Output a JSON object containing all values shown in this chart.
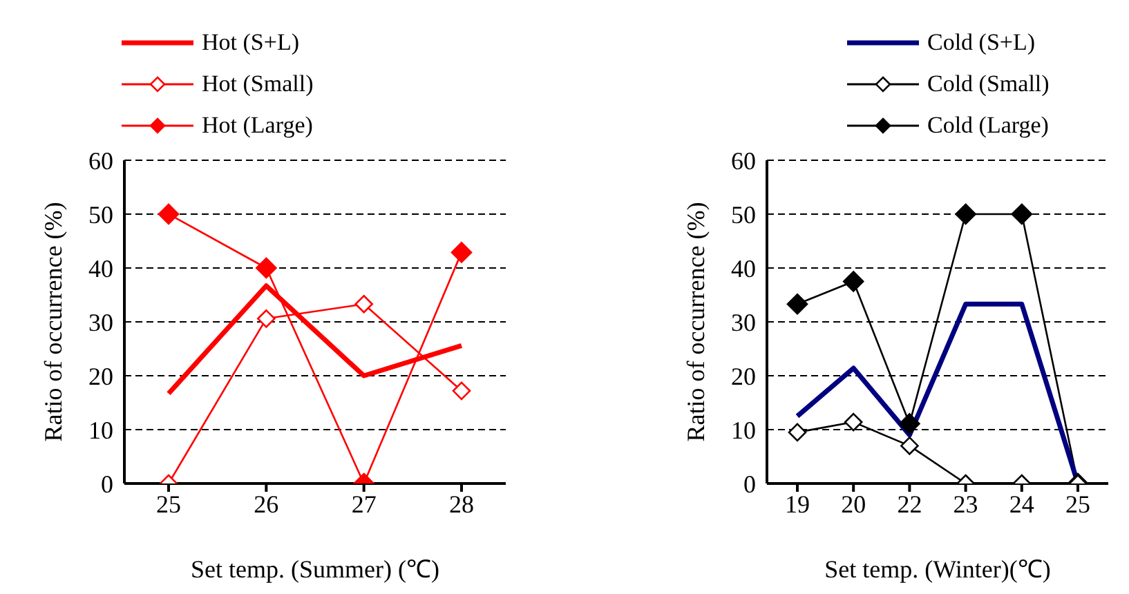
{
  "chart_data": [
    {
      "type": "line",
      "xlabel": "Set temp. (Summer) (℃)",
      "ylabel": "Ratio of occurrence (%)",
      "categories": [
        "25",
        "26",
        "27",
        "28"
      ],
      "ylim": [
        0,
        60
      ],
      "yticks": [
        0,
        10,
        20,
        30,
        40,
        50,
        60
      ],
      "grid": "y",
      "legend": "top",
      "series": [
        {
          "name": "Hot (S+L)",
          "color": "#ff0000",
          "marker": "none",
          "values": [
            16.7,
            36.7,
            20,
            25.6
          ]
        },
        {
          "name": "Hot (Small)",
          "color": "#ff0000",
          "marker": "diamond",
          "values": [
            0,
            30.6,
            33.3,
            17.2
          ]
        },
        {
          "name": "Hot (Large)",
          "color": "#ff0000",
          "marker": "diamond",
          "values": [
            50,
            40,
            0,
            42.9
          ]
        }
      ]
    },
    {
      "type": "line",
      "xlabel": "Set temp. (Winter)(℃)",
      "ylabel": "Ratio of occurrence (%)",
      "categories": [
        "19",
        "20",
        "22",
        "23",
        "24",
        "25"
      ],
      "ylim": [
        0,
        60
      ],
      "yticks": [
        0,
        10,
        20,
        30,
        40,
        50,
        60
      ],
      "grid": "y",
      "legend": "top",
      "series": [
        {
          "name": "Cold (S+L)",
          "color": "#000080",
          "marker": "none",
          "values": [
            12.5,
            21.4,
            9,
            33.3,
            33.3,
            0
          ]
        },
        {
          "name": "Cold (Small)",
          "color": "#000000",
          "marker": "diamond",
          "values": [
            9.5,
            11.4,
            7,
            0,
            0,
            0
          ]
        },
        {
          "name": "Cold (Large)",
          "color": "#000000",
          "marker": "diamond",
          "values": [
            33.3,
            37.5,
            11.1,
            50,
            50,
            0
          ]
        }
      ]
    }
  ]
}
